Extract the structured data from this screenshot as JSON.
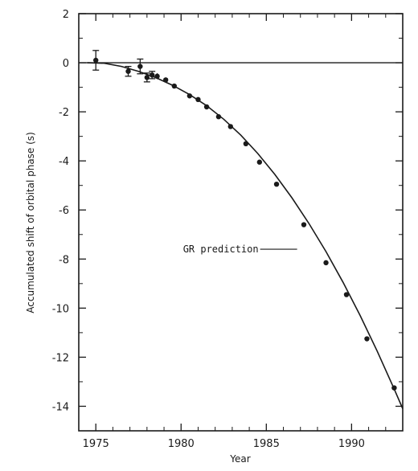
{
  "chart_data": {
    "type": "scatter",
    "title": "",
    "xlabel": "Year",
    "ylabel": "Accumulated shift of orbital phase (s)",
    "xlim": [
      1974,
      1993
    ],
    "ylim": [
      -15,
      2
    ],
    "xticks": [
      1975,
      1980,
      1985,
      1990
    ],
    "xtick_labels": [
      "1975",
      "1980",
      "1985",
      "1990"
    ],
    "yticks": [
      2,
      0,
      -2,
      -4,
      -6,
      -8,
      -10,
      -12,
      -14
    ],
    "ytick_labels": [
      "2",
      "0",
      "-2",
      "-4",
      "-6",
      "-8",
      "-10",
      "-12",
      "-14"
    ],
    "grid": false,
    "series": [
      {
        "kind": "points_with_errorbars",
        "x": [
          1975.0,
          1976.9,
          1977.6,
          1978.0,
          1978.3,
          1978.6,
          1979.1,
          1979.6,
          1980.5,
          1981.0,
          1981.5,
          1982.2,
          1982.9,
          1983.8,
          1984.6,
          1985.6,
          1987.2,
          1988.5,
          1989.7,
          1990.9,
          1992.5
        ],
        "y": [
          0.1,
          -0.35,
          -0.15,
          -0.6,
          -0.5,
          -0.55,
          -0.7,
          -0.95,
          -1.35,
          -1.5,
          -1.8,
          -2.2,
          -2.6,
          -3.3,
          -4.05,
          -4.95,
          -6.6,
          -8.15,
          -9.45,
          -11.25,
          -13.25
        ],
        "yerr": [
          0.4,
          0.2,
          0.3,
          0.18,
          0.15,
          0.12,
          0.1,
          0.08,
          0.08,
          0.08,
          0.08,
          0.06,
          0.06,
          0.06,
          0.06,
          0.06,
          0.06,
          0.06,
          0.06,
          0.06,
          0.06
        ]
      },
      {
        "kind": "curve",
        "x": [
          1974.5,
          1975.5,
          1976.5,
          1977.5,
          1978.5,
          1979.5,
          1980.5,
          1981.5,
          1982.5,
          1983.5,
          1984.5,
          1985.5,
          1986.5,
          1987.5,
          1988.5,
          1989.5,
          1990.5,
          1991.5,
          1992.5,
          1993.0
        ],
        "y": [
          0.0,
          -0.02,
          -0.15,
          -0.35,
          -0.6,
          -0.92,
          -1.3,
          -1.75,
          -2.3,
          -2.95,
          -3.7,
          -4.55,
          -5.5,
          -6.55,
          -7.7,
          -8.95,
          -10.3,
          -11.75,
          -13.3,
          -14.1
        ]
      },
      {
        "kind": "reference_line",
        "y": 0
      }
    ],
    "annotations": [
      {
        "text": "GR prediction",
        "target_x": 1986.9,
        "target_y": -7.6
      }
    ]
  }
}
